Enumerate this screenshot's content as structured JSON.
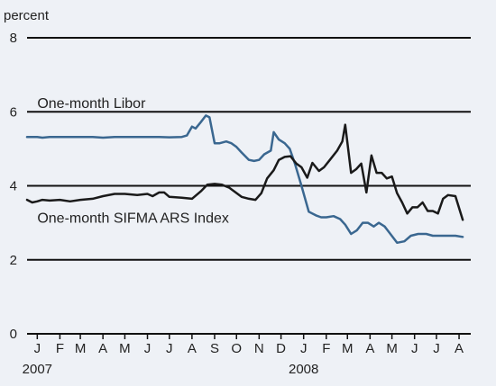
{
  "chart_data": {
    "type": "line",
    "title": "",
    "y_unit_label": "percent",
    "ylim": [
      0,
      8
    ],
    "y_ticks": [
      0,
      2,
      4,
      6,
      8
    ],
    "x_start": "2007-01-01",
    "x_end": "2008-08-31",
    "x_month_ticks": [
      {
        "label": "J",
        "date": "2007-01-15"
      },
      {
        "label": "F",
        "date": "2007-02-15"
      },
      {
        "label": "M",
        "date": "2007-03-15"
      },
      {
        "label": "A",
        "date": "2007-04-15"
      },
      {
        "label": "M",
        "date": "2007-05-15"
      },
      {
        "label": "J",
        "date": "2007-06-15"
      },
      {
        "label": "J",
        "date": "2007-07-15"
      },
      {
        "label": "A",
        "date": "2007-08-15"
      },
      {
        "label": "S",
        "date": "2007-09-15"
      },
      {
        "label": "O",
        "date": "2007-10-15"
      },
      {
        "label": "N",
        "date": "2007-11-15"
      },
      {
        "label": "D",
        "date": "2007-12-15"
      },
      {
        "label": "J",
        "date": "2008-01-15"
      },
      {
        "label": "F",
        "date": "2008-02-15"
      },
      {
        "label": "M",
        "date": "2008-03-15"
      },
      {
        "label": "A",
        "date": "2008-04-15"
      },
      {
        "label": "M",
        "date": "2008-05-15"
      },
      {
        "label": "J",
        "date": "2008-06-15"
      },
      {
        "label": "J",
        "date": "2008-07-15"
      },
      {
        "label": "A",
        "date": "2008-08-15"
      }
    ],
    "year_labels": [
      {
        "label": "2007",
        "date": "2007-01-15"
      },
      {
        "label": "2008",
        "date": "2008-01-15"
      }
    ],
    "grid": "horizontal",
    "series": [
      {
        "name": "One-month Libor",
        "color": "#3a6790",
        "label_at": {
          "date": "2007-01-15",
          "value": 6.1
        },
        "points": [
          [
            "2007-01-01",
            5.32
          ],
          [
            "2007-01-15",
            5.32
          ],
          [
            "2007-01-22",
            5.3
          ],
          [
            "2007-02-01",
            5.32
          ],
          [
            "2007-02-15",
            5.32
          ],
          [
            "2007-03-01",
            5.32
          ],
          [
            "2007-03-15",
            5.32
          ],
          [
            "2007-04-01",
            5.32
          ],
          [
            "2007-04-15",
            5.3
          ],
          [
            "2007-05-01",
            5.32
          ],
          [
            "2007-05-15",
            5.32
          ],
          [
            "2007-06-01",
            5.32
          ],
          [
            "2007-06-15",
            5.32
          ],
          [
            "2007-07-01",
            5.32
          ],
          [
            "2007-07-15",
            5.31
          ],
          [
            "2007-08-01",
            5.32
          ],
          [
            "2007-08-08",
            5.36
          ],
          [
            "2007-08-15",
            5.6
          ],
          [
            "2007-08-20",
            5.55
          ],
          [
            "2007-08-27",
            5.72
          ],
          [
            "2007-09-03",
            5.9
          ],
          [
            "2007-09-08",
            5.85
          ],
          [
            "2007-09-15",
            5.15
          ],
          [
            "2007-09-22",
            5.15
          ],
          [
            "2007-10-01",
            5.2
          ],
          [
            "2007-10-08",
            5.15
          ],
          [
            "2007-10-15",
            5.05
          ],
          [
            "2007-10-22",
            4.9
          ],
          [
            "2007-11-01",
            4.7
          ],
          [
            "2007-11-08",
            4.67
          ],
          [
            "2007-11-15",
            4.7
          ],
          [
            "2007-11-22",
            4.85
          ],
          [
            "2007-12-01",
            4.95
          ],
          [
            "2007-12-05",
            5.45
          ],
          [
            "2007-12-12",
            5.25
          ],
          [
            "2007-12-20",
            5.15
          ],
          [
            "2007-12-27",
            5.0
          ],
          [
            "2008-01-03",
            4.6
          ],
          [
            "2008-01-12",
            4.0
          ],
          [
            "2008-01-22",
            3.3
          ],
          [
            "2008-02-01",
            3.2
          ],
          [
            "2008-02-08",
            3.15
          ],
          [
            "2008-02-15",
            3.15
          ],
          [
            "2008-02-25",
            3.18
          ],
          [
            "2008-03-05",
            3.1
          ],
          [
            "2008-03-12",
            2.95
          ],
          [
            "2008-03-20",
            2.7
          ],
          [
            "2008-03-28",
            2.8
          ],
          [
            "2008-04-05",
            3.0
          ],
          [
            "2008-04-12",
            3.0
          ],
          [
            "2008-04-20",
            2.9
          ],
          [
            "2008-04-27",
            3.0
          ],
          [
            "2008-05-05",
            2.9
          ],
          [
            "2008-05-12",
            2.72
          ],
          [
            "2008-05-22",
            2.46
          ],
          [
            "2008-06-01",
            2.5
          ],
          [
            "2008-06-10",
            2.65
          ],
          [
            "2008-06-20",
            2.7
          ],
          [
            "2008-07-01",
            2.7
          ],
          [
            "2008-07-10",
            2.65
          ],
          [
            "2008-07-20",
            2.65
          ],
          [
            "2008-08-01",
            2.65
          ],
          [
            "2008-08-10",
            2.65
          ],
          [
            "2008-08-20",
            2.62
          ]
        ]
      },
      {
        "name": "One-month SIFMA ARS Index",
        "color": "#1a1a1a",
        "label_at": {
          "date": "2007-01-15",
          "value": 3.0
        },
        "points": [
          [
            "2007-01-01",
            3.62
          ],
          [
            "2007-01-08",
            3.55
          ],
          [
            "2007-01-15",
            3.58
          ],
          [
            "2007-01-22",
            3.62
          ],
          [
            "2007-02-01",
            3.6
          ],
          [
            "2007-02-15",
            3.62
          ],
          [
            "2007-03-01",
            3.58
          ],
          [
            "2007-03-15",
            3.62
          ],
          [
            "2007-04-01",
            3.65
          ],
          [
            "2007-04-15",
            3.72
          ],
          [
            "2007-05-01",
            3.78
          ],
          [
            "2007-05-15",
            3.78
          ],
          [
            "2007-06-01",
            3.75
          ],
          [
            "2007-06-15",
            3.78
          ],
          [
            "2007-06-22",
            3.72
          ],
          [
            "2007-07-01",
            3.82
          ],
          [
            "2007-07-08",
            3.82
          ],
          [
            "2007-07-15",
            3.7
          ],
          [
            "2007-08-01",
            3.68
          ],
          [
            "2007-08-15",
            3.65
          ],
          [
            "2007-08-27",
            3.85
          ],
          [
            "2007-09-05",
            4.03
          ],
          [
            "2007-09-15",
            4.05
          ],
          [
            "2007-09-25",
            4.03
          ],
          [
            "2007-10-05",
            3.95
          ],
          [
            "2007-10-12",
            3.85
          ],
          [
            "2007-10-22",
            3.7
          ],
          [
            "2007-11-01",
            3.65
          ],
          [
            "2007-11-10",
            3.62
          ],
          [
            "2007-11-18",
            3.8
          ],
          [
            "2007-11-26",
            4.2
          ],
          [
            "2007-12-05",
            4.42
          ],
          [
            "2007-12-12",
            4.7
          ],
          [
            "2007-12-20",
            4.78
          ],
          [
            "2007-12-28",
            4.8
          ],
          [
            "2008-01-05",
            4.6
          ],
          [
            "2008-01-12",
            4.5
          ],
          [
            "2008-01-20",
            4.22
          ],
          [
            "2008-01-27",
            4.62
          ],
          [
            "2008-02-05",
            4.4
          ],
          [
            "2008-02-12",
            4.5
          ],
          [
            "2008-02-20",
            4.7
          ],
          [
            "2008-03-01",
            4.95
          ],
          [
            "2008-03-08",
            5.2
          ],
          [
            "2008-03-12",
            5.65
          ],
          [
            "2008-03-20",
            4.35
          ],
          [
            "2008-03-27",
            4.45
          ],
          [
            "2008-04-03",
            4.6
          ],
          [
            "2008-04-10",
            3.82
          ],
          [
            "2008-04-17",
            4.82
          ],
          [
            "2008-04-24",
            4.35
          ],
          [
            "2008-05-01",
            4.35
          ],
          [
            "2008-05-08",
            4.2
          ],
          [
            "2008-05-15",
            4.25
          ],
          [
            "2008-05-22",
            3.8
          ],
          [
            "2008-05-29",
            3.55
          ],
          [
            "2008-06-05",
            3.25
          ],
          [
            "2008-06-12",
            3.42
          ],
          [
            "2008-06-19",
            3.42
          ],
          [
            "2008-06-26",
            3.55
          ],
          [
            "2008-07-03",
            3.32
          ],
          [
            "2008-07-10",
            3.32
          ],
          [
            "2008-07-17",
            3.25
          ],
          [
            "2008-07-24",
            3.65
          ],
          [
            "2008-07-31",
            3.75
          ],
          [
            "2008-08-10",
            3.72
          ],
          [
            "2008-08-20",
            3.08
          ]
        ]
      }
    ]
  }
}
